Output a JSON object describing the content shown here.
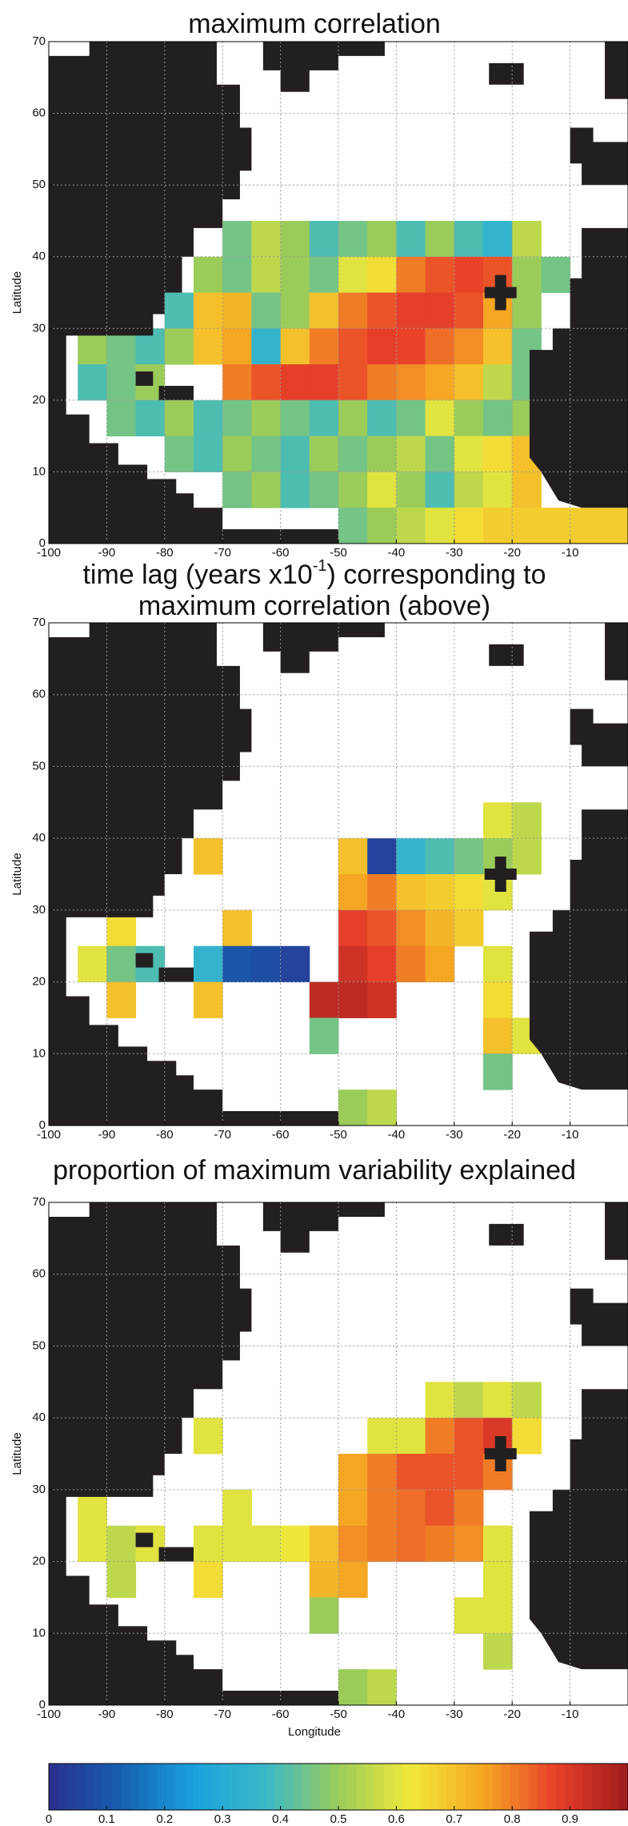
{
  "chart_data": [
    {
      "type": "heatmap",
      "title": "maximum correlation",
      "ylabel": "Latitude",
      "x": [
        -97.5,
        -92.5,
        -87.5,
        -82.5,
        -77.5,
        -72.5,
        -67.5,
        -62.5,
        -57.5,
        -52.5,
        -47.5,
        -42.5,
        -37.5,
        -32.5,
        -27.5,
        -22.5,
        -17.5,
        -12.5,
        -7.5,
        -2.5
      ],
      "y": [
        42.5,
        37.5,
        32.5,
        27.5,
        22.5,
        17.5,
        12.5,
        7.5,
        2.5
      ],
      "z": [
        [
          null,
          null,
          null,
          null,
          null,
          null,
          0.45,
          0.55,
          0.5,
          0.4,
          0.45,
          0.5,
          0.4,
          0.5,
          0.4,
          0.35,
          0.55,
          null,
          null,
          null
        ],
        [
          null,
          null,
          null,
          null,
          null,
          0.5,
          0.45,
          0.55,
          0.5,
          0.45,
          0.6,
          0.65,
          0.8,
          0.85,
          0.87,
          0.85,
          0.5,
          0.45,
          null,
          null
        ],
        [
          null,
          null,
          null,
          null,
          0.4,
          0.7,
          0.72,
          0.45,
          0.5,
          0.7,
          0.8,
          0.85,
          0.88,
          0.88,
          0.85,
          0.75,
          0.5,
          null,
          null,
          null
        ],
        [
          null,
          0.5,
          0.45,
          0.4,
          0.5,
          0.7,
          0.75,
          0.35,
          0.7,
          0.8,
          0.85,
          0.88,
          0.87,
          0.82,
          0.78,
          0.7,
          0.45,
          null,
          null,
          null
        ],
        [
          null,
          0.4,
          0.45,
          0.5,
          null,
          null,
          0.8,
          0.85,
          0.88,
          0.88,
          0.85,
          0.8,
          0.78,
          0.75,
          0.7,
          0.55,
          0.45,
          null,
          null,
          null
        ],
        [
          null,
          null,
          0.45,
          0.4,
          0.5,
          0.4,
          0.45,
          0.5,
          0.45,
          0.4,
          0.5,
          0.4,
          0.45,
          0.6,
          0.5,
          0.45,
          0.5,
          null,
          null,
          null
        ],
        [
          null,
          null,
          null,
          null,
          0.45,
          0.4,
          0.5,
          0.45,
          0.4,
          0.5,
          0.45,
          0.5,
          0.55,
          0.45,
          0.6,
          0.65,
          0.7,
          null,
          null,
          null
        ],
        [
          null,
          null,
          null,
          null,
          null,
          null,
          0.45,
          0.5,
          0.4,
          0.45,
          0.5,
          0.6,
          0.5,
          0.4,
          0.55,
          0.6,
          0.7,
          null,
          null,
          null
        ],
        [
          null,
          null,
          null,
          null,
          null,
          null,
          null,
          null,
          null,
          null,
          0.45,
          0.5,
          0.55,
          0.6,
          0.65,
          0.68,
          0.68,
          0.68,
          0.68,
          0.68
        ]
      ],
      "xlim": [
        -100,
        0
      ],
      "ylim": [
        0,
        70
      ],
      "xticks": [
        -100,
        -90,
        -80,
        -70,
        -60,
        -50,
        -40,
        -30,
        -20,
        -10
      ],
      "yticks": [
        0,
        10,
        20,
        30,
        40,
        50,
        60,
        70
      ],
      "grid": true,
      "marker": [
        -22,
        35
      ]
    },
    {
      "type": "heatmap",
      "title": [
        "time lag (years x10",
        "-1",
        ") corresponding to",
        "maximum correlation (above)"
      ],
      "ylabel": "Latitude",
      "x": [
        -97.5,
        -92.5,
        -87.5,
        -82.5,
        -77.5,
        -72.5,
        -67.5,
        -62.5,
        -57.5,
        -52.5,
        -47.5,
        -42.5,
        -37.5,
        -32.5,
        -27.5,
        -22.5,
        -17.5,
        -12.5,
        -7.5,
        -2.5
      ],
      "y": [
        42.5,
        37.5,
        32.5,
        27.5,
        22.5,
        17.5,
        12.5,
        7.5,
        2.5
      ],
      "z": [
        [
          null,
          null,
          null,
          null,
          null,
          null,
          null,
          null,
          null,
          null,
          null,
          null,
          null,
          null,
          null,
          0.6,
          0.55,
          null,
          null,
          null
        ],
        [
          null,
          null,
          null,
          null,
          null,
          0.7,
          null,
          null,
          null,
          null,
          0.7,
          0.05,
          0.35,
          0.4,
          0.45,
          0.5,
          0.55,
          null,
          null,
          null
        ],
        [
          null,
          null,
          null,
          null,
          null,
          null,
          null,
          null,
          null,
          null,
          0.75,
          0.8,
          0.7,
          0.68,
          0.65,
          0.6,
          null,
          null,
          null,
          null
        ],
        [
          null,
          null,
          0.65,
          null,
          null,
          null,
          0.7,
          null,
          null,
          null,
          0.88,
          0.85,
          0.78,
          0.72,
          0.68,
          null,
          null,
          null,
          null,
          null
        ],
        [
          null,
          0.6,
          0.45,
          0.4,
          null,
          0.35,
          0.1,
          0.08,
          0.05,
          null,
          0.92,
          0.88,
          0.8,
          0.75,
          null,
          0.6,
          null,
          null,
          null,
          null
        ],
        [
          null,
          null,
          0.7,
          null,
          null,
          0.7,
          null,
          null,
          null,
          0.95,
          0.95,
          0.92,
          null,
          null,
          null,
          0.65,
          null,
          null,
          null,
          null
        ],
        [
          null,
          null,
          null,
          null,
          null,
          null,
          null,
          null,
          null,
          0.45,
          null,
          null,
          null,
          null,
          null,
          0.7,
          0.6,
          null,
          null,
          null
        ],
        [
          null,
          null,
          null,
          null,
          null,
          null,
          null,
          null,
          null,
          null,
          null,
          null,
          null,
          null,
          null,
          0.45,
          null,
          null,
          null,
          null
        ],
        [
          null,
          null,
          null,
          null,
          null,
          null,
          null,
          null,
          null,
          null,
          0.5,
          0.55,
          null,
          null,
          null,
          null,
          null,
          null,
          null,
          null
        ]
      ],
      "xlim": [
        -100,
        0
      ],
      "ylim": [
        0,
        70
      ],
      "xticks": [
        -100,
        -90,
        -80,
        -70,
        -60,
        -50,
        -40,
        -30,
        -20,
        -10
      ],
      "yticks": [
        0,
        10,
        20,
        30,
        40,
        50,
        60,
        70
      ],
      "grid": true,
      "marker": [
        -22,
        35
      ]
    },
    {
      "type": "heatmap",
      "title": "proportion of maximum variability explained",
      "ylabel": "Latitude",
      "xlabel": "Longitude",
      "x": [
        -97.5,
        -92.5,
        -87.5,
        -82.5,
        -77.5,
        -72.5,
        -67.5,
        -62.5,
        -57.5,
        -52.5,
        -47.5,
        -42.5,
        -37.5,
        -32.5,
        -27.5,
        -22.5,
        -17.5,
        -12.5,
        -7.5,
        -2.5
      ],
      "y": [
        42.5,
        37.5,
        32.5,
        27.5,
        22.5,
        17.5,
        12.5,
        7.5,
        2.5
      ],
      "z": [
        [
          null,
          null,
          null,
          null,
          null,
          null,
          null,
          null,
          null,
          null,
          null,
          null,
          null,
          0.6,
          0.55,
          0.6,
          0.55,
          null,
          null,
          null
        ],
        [
          null,
          null,
          null,
          null,
          null,
          0.6,
          null,
          null,
          null,
          null,
          null,
          0.6,
          0.6,
          0.8,
          0.85,
          0.9,
          0.65,
          null,
          null,
          null
        ],
        [
          null,
          null,
          null,
          null,
          null,
          null,
          null,
          null,
          null,
          null,
          0.75,
          0.8,
          0.85,
          0.85,
          0.85,
          0.8,
          null,
          null,
          null,
          null
        ],
        [
          null,
          0.6,
          null,
          null,
          null,
          null,
          0.6,
          null,
          null,
          null,
          0.75,
          0.8,
          0.82,
          0.85,
          0.8,
          null,
          null,
          null,
          null,
          null
        ],
        [
          null,
          0.6,
          0.55,
          0.6,
          null,
          0.6,
          0.6,
          0.6,
          0.62,
          0.7,
          0.78,
          0.8,
          0.82,
          0.8,
          0.78,
          0.6,
          null,
          null,
          null,
          null
        ],
        [
          null,
          null,
          0.55,
          null,
          null,
          0.65,
          null,
          null,
          null,
          0.72,
          0.75,
          null,
          null,
          null,
          null,
          0.6,
          null,
          null,
          null,
          null
        ],
        [
          null,
          null,
          null,
          null,
          null,
          null,
          null,
          null,
          null,
          0.5,
          null,
          null,
          null,
          null,
          0.6,
          0.6,
          null,
          null,
          null,
          null
        ],
        [
          null,
          null,
          null,
          null,
          null,
          null,
          null,
          null,
          null,
          null,
          null,
          null,
          null,
          null,
          null,
          0.55,
          null,
          null,
          null,
          null
        ],
        [
          null,
          null,
          null,
          null,
          null,
          null,
          null,
          null,
          null,
          null,
          0.5,
          0.55,
          null,
          null,
          null,
          null,
          null,
          null,
          null,
          null
        ]
      ],
      "xlim": [
        -100,
        0
      ],
      "ylim": [
        0,
        70
      ],
      "xticks": [
        -100,
        -90,
        -80,
        -70,
        -60,
        -50,
        -40,
        -30,
        -20,
        -10
      ],
      "yticks": [
        0,
        10,
        20,
        30,
        40,
        50,
        60,
        70
      ],
      "grid": true,
      "marker": [
        -22,
        35
      ]
    },
    {
      "type": "colorbar",
      "clim": [
        0,
        1
      ],
      "ticks": [
        0,
        0.1,
        0.2,
        0.3,
        0.4,
        0.5,
        0.6,
        0.7,
        0.8,
        0.9
      ],
      "colormap": [
        "#2b2f8f",
        "#1660b0",
        "#1aa0dd",
        "#3ab9c8",
        "#9bcc5a",
        "#f2e93a",
        "#f5a623",
        "#e8402a",
        "#9e1b1b"
      ]
    }
  ]
}
